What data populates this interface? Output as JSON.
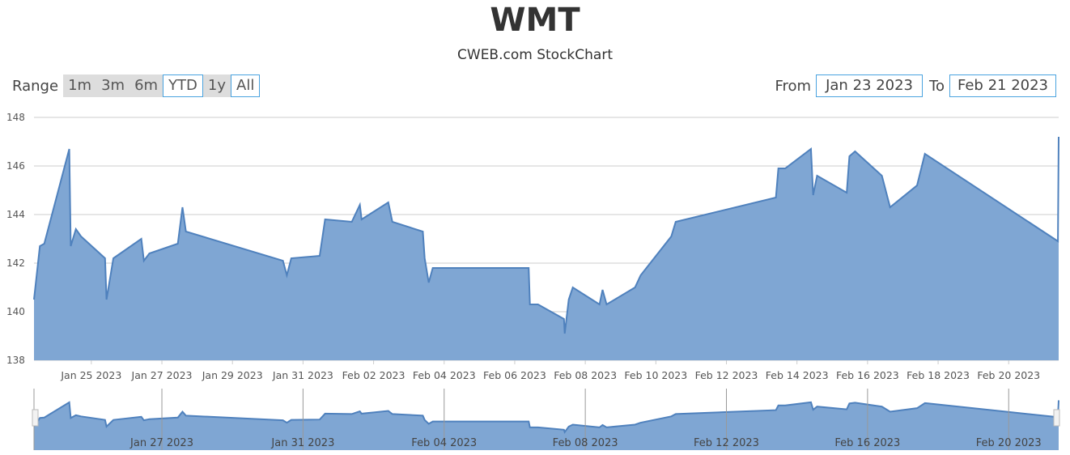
{
  "header": {
    "title": "WMT",
    "subtitle": "CWEB.com StockChart"
  },
  "range_selector": {
    "label": "Range",
    "buttons": [
      {
        "label": "1m",
        "selected": false
      },
      {
        "label": "3m",
        "selected": false
      },
      {
        "label": "6m",
        "selected": false
      },
      {
        "label": "YTD",
        "selected": true
      },
      {
        "label": "1y",
        "selected": false
      },
      {
        "label": "All",
        "selected": true
      }
    ]
  },
  "date_range": {
    "from_label": "From",
    "from_value": "Jan 23 2023",
    "to_label": "To",
    "to_value": "Feb 21 2023"
  },
  "colors": {
    "area_fill": "#7fa6d3",
    "line": "#4f81bd",
    "grid": "#cccccc",
    "button_border": "#4aa3df"
  },
  "chart_data": {
    "type": "area",
    "title": "WMT",
    "subtitle": "CWEB.com StockChart",
    "ylim": [
      138,
      148
    ],
    "yticks": [
      "138",
      "140",
      "142",
      "144",
      "146",
      "148"
    ],
    "xlim": [
      "2023-01-23T09:00",
      "2023-02-21T10:00"
    ],
    "xticks": [
      "Jan 25 2023",
      "Jan 27 2023",
      "Jan 29 2023",
      "Jan 31 2023",
      "Feb 02 2023",
      "Feb 04 2023",
      "Feb 06 2023",
      "Feb 08 2023",
      "Feb 10 2023",
      "Feb 12 2023",
      "Feb 14 2023",
      "Feb 16 2023",
      "Feb 18 2023",
      "Feb 20 2023"
    ],
    "navigator_xticks": [
      "Jan 27 2023",
      "Jan 31 2023",
      "Feb 04 2023",
      "Feb 08 2023",
      "Feb 12 2023",
      "Feb 16 2023",
      "Feb 20 2023"
    ],
    "grid": true,
    "points": [
      [
        "2023-01-23T09:00",
        140.5
      ],
      [
        "2023-01-23T13:00",
        142.7
      ],
      [
        "2023-01-23T16:00",
        142.8
      ],
      [
        "2023-01-24T09:00",
        146.7
      ],
      [
        "2023-01-24T10:00",
        142.7
      ],
      [
        "2023-01-24T13:30",
        143.4
      ],
      [
        "2023-01-24T17:00",
        143.1
      ],
      [
        "2023-01-25T09:20",
        142.2
      ],
      [
        "2023-01-25T10:20",
        140.5
      ],
      [
        "2023-01-25T15:00",
        142.2
      ],
      [
        "2023-01-26T10:00",
        143.0
      ],
      [
        "2023-01-26T11:45",
        142.1
      ],
      [
        "2023-01-26T15:30",
        142.4
      ],
      [
        "2023-01-27T10:50",
        142.8
      ],
      [
        "2023-01-27T14:00",
        144.3
      ],
      [
        "2023-01-27T16:20",
        143.3
      ],
      [
        "2023-01-30T10:20",
        142.1
      ],
      [
        "2023-01-30T13:00",
        141.5
      ],
      [
        "2023-01-30T16:00",
        142.2
      ],
      [
        "2023-01-31T11:20",
        142.3
      ],
      [
        "2023-01-31T15:00",
        143.8
      ],
      [
        "2023-02-01T09:10",
        143.7
      ],
      [
        "2023-02-01T14:40",
        144.4
      ],
      [
        "2023-02-01T15:50",
        143.8
      ],
      [
        "2023-02-02T10:00",
        144.5
      ],
      [
        "2023-02-02T12:45",
        143.7
      ],
      [
        "2023-02-03T09:30",
        143.3
      ],
      [
        "2023-02-03T10:45",
        142.2
      ],
      [
        "2023-02-03T13:30",
        141.2
      ],
      [
        "2023-02-03T16:15",
        141.8
      ],
      [
        "2023-02-06T09:30",
        141.8
      ],
      [
        "2023-02-06T10:20",
        140.3
      ],
      [
        "2023-02-06T15:50",
        140.3
      ],
      [
        "2023-02-07T09:30",
        139.7
      ],
      [
        "2023-02-07T10:00",
        139.1
      ],
      [
        "2023-02-07T12:45",
        140.5
      ],
      [
        "2023-02-07T15:30",
        141.0
      ],
      [
        "2023-02-08T09:40",
        140.3
      ],
      [
        "2023-02-08T11:45",
        140.9
      ],
      [
        "2023-02-08T14:30",
        140.3
      ],
      [
        "2023-02-09T09:50",
        141.0
      ],
      [
        "2023-02-09T13:40",
        141.5
      ],
      [
        "2023-02-10T10:30",
        143.1
      ],
      [
        "2023-02-10T13:30",
        143.7
      ],
      [
        "2023-02-13T09:40",
        144.7
      ],
      [
        "2023-02-13T11:20",
        145.9
      ],
      [
        "2023-02-13T16:00",
        145.9
      ],
      [
        "2023-02-14T09:30",
        146.7
      ],
      [
        "2023-02-14T11:00",
        144.8
      ],
      [
        "2023-02-14T13:40",
        145.6
      ],
      [
        "2023-02-15T09:50",
        144.9
      ],
      [
        "2023-02-15T11:40",
        146.4
      ],
      [
        "2023-02-15T15:30",
        146.6
      ],
      [
        "2023-02-16T09:45",
        145.6
      ],
      [
        "2023-02-16T15:20",
        144.3
      ],
      [
        "2023-02-17T09:40",
        145.2
      ],
      [
        "2023-02-17T15:00",
        146.5
      ],
      [
        "2023-02-21T09:30",
        142.9
      ],
      [
        "2023-02-21T10:00",
        147.2
      ]
    ]
  }
}
